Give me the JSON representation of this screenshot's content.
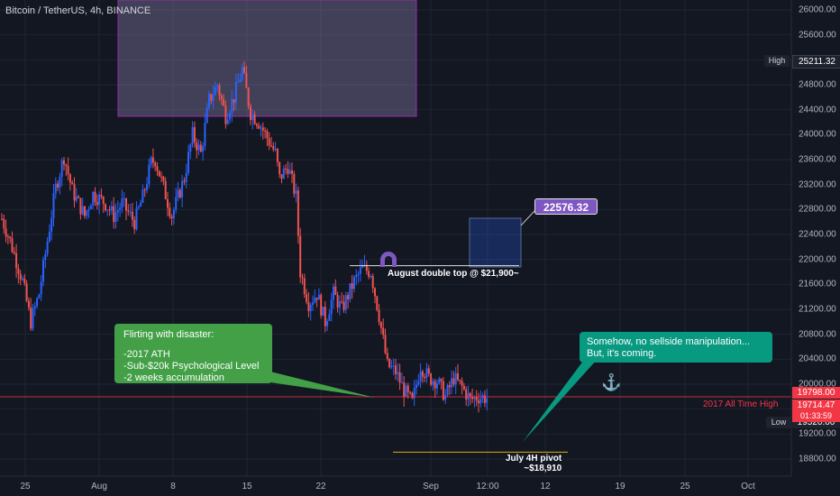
{
  "header": {
    "title": "Bitcoin / TetherUS, 4h, BINANCE"
  },
  "chart_data": {
    "type": "candlestick",
    "y_axis": {
      "range": [
        18500,
        26100
      ],
      "ticks": [
        26000,
        25600,
        25200,
        24800,
        24400,
        24000,
        23600,
        23200,
        22800,
        22400,
        22000,
        21600,
        21200,
        20800,
        20400,
        20000,
        19600,
        19200,
        18800
      ],
      "tick_labels": [
        "26000.00",
        "25600.00",
        "25200.00",
        "24800.00",
        "24400.00",
        "24000.00",
        "23600.00",
        "23200.00",
        "22800.00",
        "22400.00",
        "22000.00",
        "21600.00",
        "21200.00",
        "20800.00",
        "20400.00",
        "20000.00",
        "19600.00",
        "19200.00",
        "18800.00"
      ]
    },
    "x_axis": {
      "tick_labels": [
        "25",
        "Aug",
        "8",
        "15",
        "22",
        "Sep",
        "12:00",
        "12",
        "19",
        "25",
        "Oct"
      ]
    },
    "close_path": [
      [
        22650,
        0
      ],
      [
        22300,
        2
      ],
      [
        21650,
        5
      ],
      [
        21000,
        7
      ],
      [
        21450,
        9
      ],
      [
        22300,
        11
      ],
      [
        23150,
        13
      ],
      [
        23650,
        15
      ],
      [
        23100,
        17
      ],
      [
        22700,
        20
      ],
      [
        23050,
        22
      ],
      [
        22900,
        25
      ],
      [
        22700,
        27
      ],
      [
        22900,
        29
      ],
      [
        22600,
        32
      ],
      [
        23000,
        34
      ],
      [
        23550,
        36
      ],
      [
        23600,
        37
      ],
      [
        23150,
        39
      ],
      [
        22700,
        41
      ],
      [
        23300,
        44
      ],
      [
        24000,
        46
      ],
      [
        23700,
        48
      ],
      [
        24550,
        50
      ],
      [
        24800,
        52
      ],
      [
        24300,
        54
      ],
      [
        24600,
        56
      ],
      [
        25050,
        58
      ],
      [
        24350,
        60
      ],
      [
        24200,
        62
      ],
      [
        23950,
        64
      ],
      [
        23700,
        66
      ],
      [
        23300,
        67
      ],
      [
        23500,
        69
      ],
      [
        23000,
        71
      ],
      [
        21800,
        72
      ],
      [
        21300,
        74
      ],
      [
        21450,
        76
      ],
      [
        21000,
        78
      ],
      [
        21450,
        80
      ],
      [
        21200,
        82
      ],
      [
        21650,
        85
      ],
      [
        21850,
        87
      ],
      [
        21800,
        89
      ],
      [
        21100,
        91
      ],
      [
        20300,
        93
      ],
      [
        20200,
        95
      ],
      [
        19900,
        97
      ],
      [
        19700,
        99
      ],
      [
        20300,
        101
      ],
      [
        20100,
        103
      ],
      [
        20050,
        105
      ],
      [
        19800,
        107
      ],
      [
        20100,
        109
      ],
      [
        19950,
        111
      ],
      [
        19750,
        113
      ],
      [
        19800,
        115
      ],
      [
        19780,
        117
      ]
    ],
    "y_label_tags": {
      "high": {
        "label": "High",
        "value": "25211.32",
        "price": 25211.32
      },
      "low": {
        "label": "Low",
        "value": "19520.00",
        "price": 19520
      },
      "current": {
        "value": "19714.47",
        "countdown": "01:33:59",
        "price": 19714.47
      },
      "ath": {
        "value": "19798.00",
        "price": 19798
      }
    },
    "levels": {
      "ath_line": {
        "price": 19798,
        "label": "2017 All Time High",
        "color": "#f23645"
      },
      "double_top": {
        "price": 21900,
        "label": "August double top @ $21,900~"
      },
      "july_pivot": {
        "price": 18910,
        "label_line1": "July 4H pivot",
        "label_line2": "~$18,910",
        "color": "#d4b106"
      }
    },
    "target": {
      "value": "22576.32"
    },
    "colors": {
      "up": "#2962ff",
      "down": "#ef5350",
      "background": "#131722"
    }
  },
  "notes": {
    "green": {
      "line1": "Flirting with disaster:",
      "line2": "-2017 ATH",
      "line3": "-Sub-$20k Psychological Level",
      "line4": "-2 weeks accumulation"
    },
    "teal": {
      "line1": "Somehow, no sellside manipulation...",
      "line2": "But, it's coming."
    }
  },
  "icons": {
    "magnet": "magnet-icon",
    "anchor": "anchor-icon"
  }
}
